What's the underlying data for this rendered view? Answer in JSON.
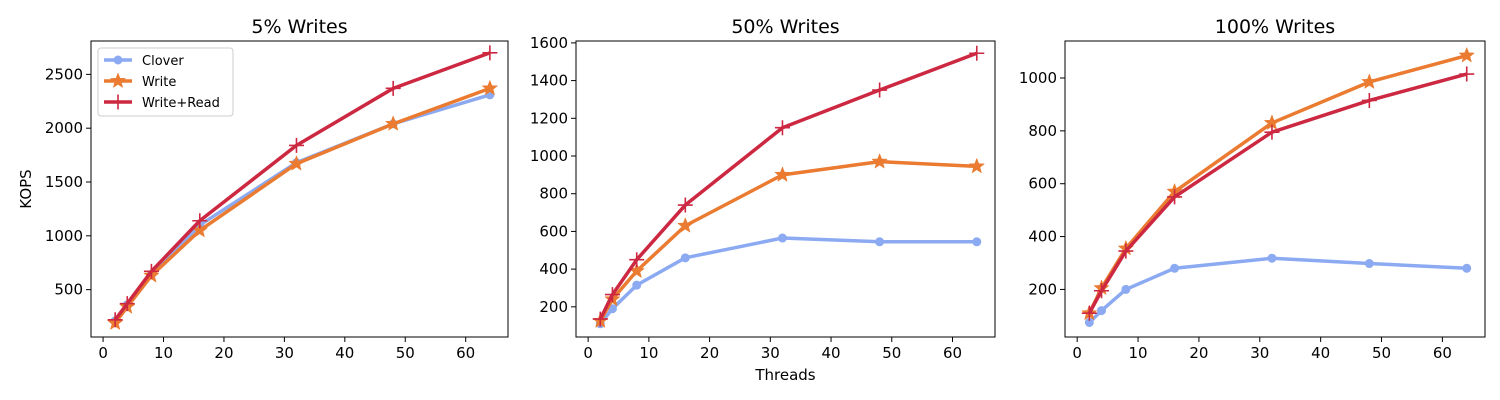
{
  "figure": {
    "ylabel": "KOPS",
    "xlabel": "Threads"
  },
  "series_styles": [
    {
      "name": "Clover",
      "color": "#8caaf2",
      "marker": "circle"
    },
    {
      "name": "Write",
      "color": "#ea7b31",
      "marker": "star"
    },
    {
      "name": "Write+Read",
      "color": "#cc2841",
      "marker": "plus"
    }
  ],
  "chart_data": [
    {
      "type": "line",
      "title": "5% Writes",
      "x": [
        2,
        4,
        8,
        16,
        32,
        48,
        64
      ],
      "xlim": [
        -2,
        67
      ],
      "xticks": [
        0,
        10,
        20,
        30,
        40,
        50,
        60
      ],
      "ylim": [
        60,
        2810
      ],
      "yticks": [
        500,
        1000,
        1500,
        2000,
        2500
      ],
      "xlabel": "",
      "ylabel": "KOPS",
      "legend": "top-left",
      "grid": false,
      "series": [
        {
          "name": "Clover",
          "values": [
            210,
            360,
            640,
            1100,
            1680,
            2040,
            2310
          ]
        },
        {
          "name": "Write",
          "values": [
            190,
            340,
            630,
            1050,
            1670,
            2040,
            2370
          ]
        },
        {
          "name": "Write+Read",
          "values": [
            220,
            370,
            670,
            1140,
            1840,
            2370,
            2700
          ]
        }
      ]
    },
    {
      "type": "line",
      "title": "50% Writes",
      "x": [
        2,
        4,
        8,
        16,
        32,
        48,
        64
      ],
      "xlim": [
        -2,
        67
      ],
      "xticks": [
        0,
        10,
        20,
        30,
        40,
        50,
        60
      ],
      "ylim": [
        40,
        1610
      ],
      "yticks": [
        200,
        400,
        600,
        800,
        1000,
        1200,
        1400,
        1600
      ],
      "xlabel": "Threads",
      "ylabel": "",
      "legend": "none",
      "grid": false,
      "series": [
        {
          "name": "Clover",
          "values": [
            110,
            190,
            315,
            460,
            565,
            545,
            545
          ]
        },
        {
          "name": "Write",
          "values": [
            125,
            240,
            390,
            630,
            900,
            970,
            945
          ]
        },
        {
          "name": "Write+Read",
          "values": [
            135,
            265,
            450,
            740,
            1150,
            1350,
            1545
          ]
        }
      ]
    },
    {
      "type": "line",
      "title": "100% Writes",
      "x": [
        2,
        4,
        8,
        16,
        32,
        48,
        64
      ],
      "xlim": [
        -2,
        67
      ],
      "xticks": [
        0,
        10,
        20,
        30,
        40,
        50,
        60
      ],
      "ylim": [
        20,
        1140
      ],
      "yticks": [
        200,
        400,
        600,
        800,
        1000
      ],
      "xlabel": "",
      "ylabel": "",
      "legend": "none",
      "grid": false,
      "series": [
        {
          "name": "Clover",
          "values": [
            75,
            120,
            200,
            280,
            318,
            298,
            280
          ]
        },
        {
          "name": "Write",
          "values": [
            110,
            205,
            355,
            570,
            830,
            985,
            1085
          ]
        },
        {
          "name": "Write+Read",
          "values": [
            110,
            195,
            345,
            550,
            795,
            915,
            1015
          ]
        }
      ]
    }
  ]
}
